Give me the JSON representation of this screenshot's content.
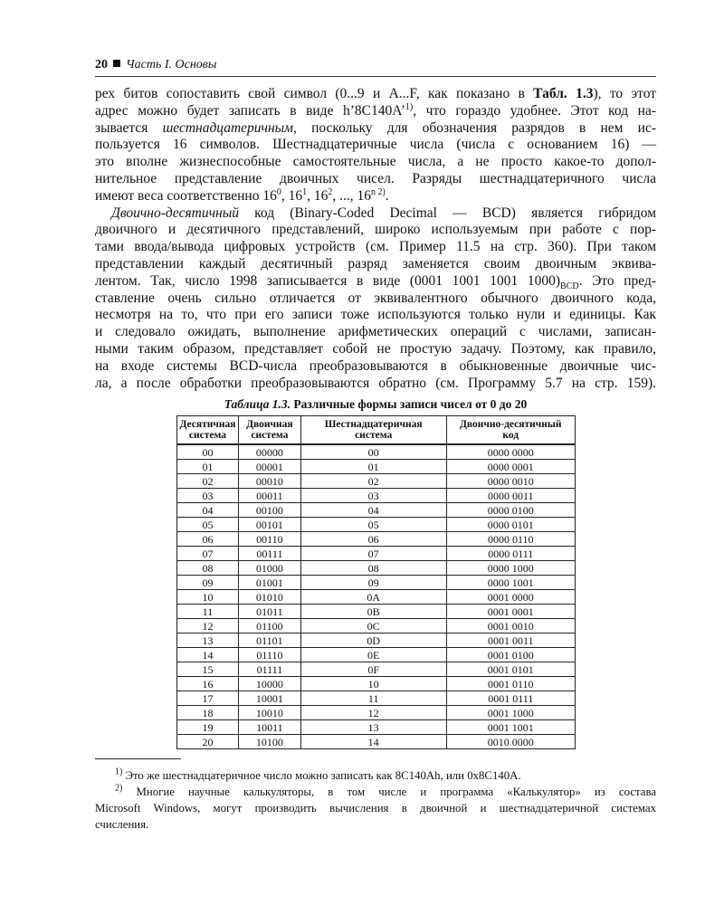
{
  "header": {
    "page_number": "20",
    "part_title": "Часть I. Основы"
  },
  "body": {
    "paragraphs": [
      {
        "lines": [
          [
            {
              "t": "рех битов сопоставить свой символ (0...9 и A...F, как показано в "
            },
            {
              "t": "Табл. 1.3",
              "s": "b"
            },
            {
              "t": "), то этот"
            }
          ],
          [
            {
              "t": "адрес можно будет записать в виде h’8C140A’"
            },
            {
              "t": "1)",
              "s": "sup"
            },
            {
              "t": ", что гораздо удобнее. Этот код на-"
            }
          ],
          [
            {
              "t": "зывается "
            },
            {
              "t": "шестнадцатеричным",
              "s": "i"
            },
            {
              "t": ", поскольку для обозначения разрядов в нем ис-"
            }
          ],
          [
            {
              "t": "пользуется 16 символов. Шестнадцатеричные числа (числа с основанием 16) —"
            }
          ],
          [
            {
              "t": "это вполне жизнеспособные самостоятельные числа, а не просто какое-то допол-"
            }
          ],
          [
            {
              "t": "нительное представление двоичных чисел. Разряды шестнадцатеричного числа"
            }
          ],
          [
            {
              "t": "имеют веса соответственно 16"
            },
            {
              "t": "0",
              "s": "sup"
            },
            {
              "t": ", 16"
            },
            {
              "t": "1",
              "s": "sup"
            },
            {
              "t": ", 16"
            },
            {
              "t": "2",
              "s": "sup"
            },
            {
              "t": ", ..., 16"
            },
            {
              "t": "n 2)",
              "s": "sup"
            },
            {
              "t": "."
            }
          ]
        ]
      },
      {
        "lines": [
          [
            {
              "t": "Двоично-десятичный",
              "s": "i"
            },
            {
              "t": " код (Binary-Coded Decimal — BCD) является гибридом"
            }
          ],
          [
            {
              "t": "двоичного и десятичного представлений, широко используемым при работе с пор-"
            }
          ],
          [
            {
              "t": "тами ввода/вывода цифровых устройств (см. Пример 11.5 на стр. 360). При таком"
            }
          ],
          [
            {
              "t": "представлении каждый десятичный разряд заменяется своим двоичным эквива-"
            }
          ],
          [
            {
              "t": "лентом. Так, число 1998 записывается в виде (0001 1001 1001 1000)"
            },
            {
              "t": "BCD",
              "s": "sub"
            },
            {
              "t": ". Это пред-"
            }
          ],
          [
            {
              "t": "ставление очень сильно отличается от эквивалентного обычного двоичного кода,"
            }
          ],
          [
            {
              "t": "несмотря на то, что при его записи тоже используются только нули и единицы. Как"
            }
          ],
          [
            {
              "t": "и следовало ожидать, выполнение арифметических операций с числами, записан-"
            }
          ],
          [
            {
              "t": "ными таким образом, представляет собой не простую задачу. Поэтому, как правило,"
            }
          ],
          [
            {
              "t": "на входе системы BCD-числа преобразовываются в обыкновенные двоичные чис-"
            }
          ],
          [
            {
              "t": "ла, а после обработки преобразовываются обратно (см. Программу 5.7 на стр. 159)."
            }
          ]
        ]
      }
    ]
  },
  "table": {
    "caption_label": "Таблица 1.3.",
    "caption_text": " Различные формы записи чисел от 0 до 20",
    "headers": [
      [
        "Десятичная",
        "система"
      ],
      [
        "Двоичная",
        "система"
      ],
      [
        "Шестнадцатеричная",
        "система"
      ],
      [
        "Двоично-десятичный",
        "код"
      ]
    ],
    "rows": [
      [
        "00",
        "00000",
        "00",
        "0000 0000"
      ],
      [
        "01",
        "00001",
        "01",
        "0000 0001"
      ],
      [
        "02",
        "00010",
        "02",
        "0000 0010"
      ],
      [
        "03",
        "00011",
        "03",
        "0000 0011"
      ],
      [
        "04",
        "00100",
        "04",
        "0000 0100"
      ],
      [
        "05",
        "00101",
        "05",
        "0000 0101"
      ],
      [
        "06",
        "00110",
        "06",
        "0000 0110"
      ],
      [
        "07",
        "00111",
        "07",
        "0000 0111"
      ],
      [
        "08",
        "01000",
        "08",
        "0000 1000"
      ],
      [
        "09",
        "01001",
        "09",
        "0000 1001"
      ],
      [
        "10",
        "01010",
        "0A",
        "0001 0000"
      ],
      [
        "11",
        "01011",
        "0B",
        "0001 0001"
      ],
      [
        "12",
        "01100",
        "0C",
        "0001 0010"
      ],
      [
        "13",
        "01101",
        "0D",
        "0001 0011"
      ],
      [
        "14",
        "01110",
        "0E",
        "0001 0100"
      ],
      [
        "15",
        "01111",
        "0F",
        "0001 0101"
      ],
      [
        "16",
        "10000",
        "10",
        "0001 0110"
      ],
      [
        "17",
        "10001",
        "11",
        "0001 0111"
      ],
      [
        "18",
        "10010",
        "12",
        "0001 1000"
      ],
      [
        "19",
        "10011",
        "13",
        "0001 1001"
      ],
      [
        "20",
        "10100",
        "14",
        "0010 0000"
      ]
    ]
  },
  "footnotes": [
    {
      "lines": [
        [
          {
            "t": "1)",
            "s": "sup"
          },
          {
            "t": "  Это же шестнадцатеричное число можно записать как 8C140Ah, или 0x8C140A."
          }
        ]
      ]
    },
    {
      "lines": [
        [
          {
            "t": "2)",
            "s": "sup"
          },
          {
            "t": " Многие научные калькуляторы, в том числе и программа «Калькулятор» из состава"
          }
        ],
        [
          {
            "t": "Microsoft Windows, могут производить вычисления в двоичной и шестнадцатеричной системах"
          }
        ],
        [
          {
            "t": "счисления."
          }
        ]
      ]
    }
  ]
}
